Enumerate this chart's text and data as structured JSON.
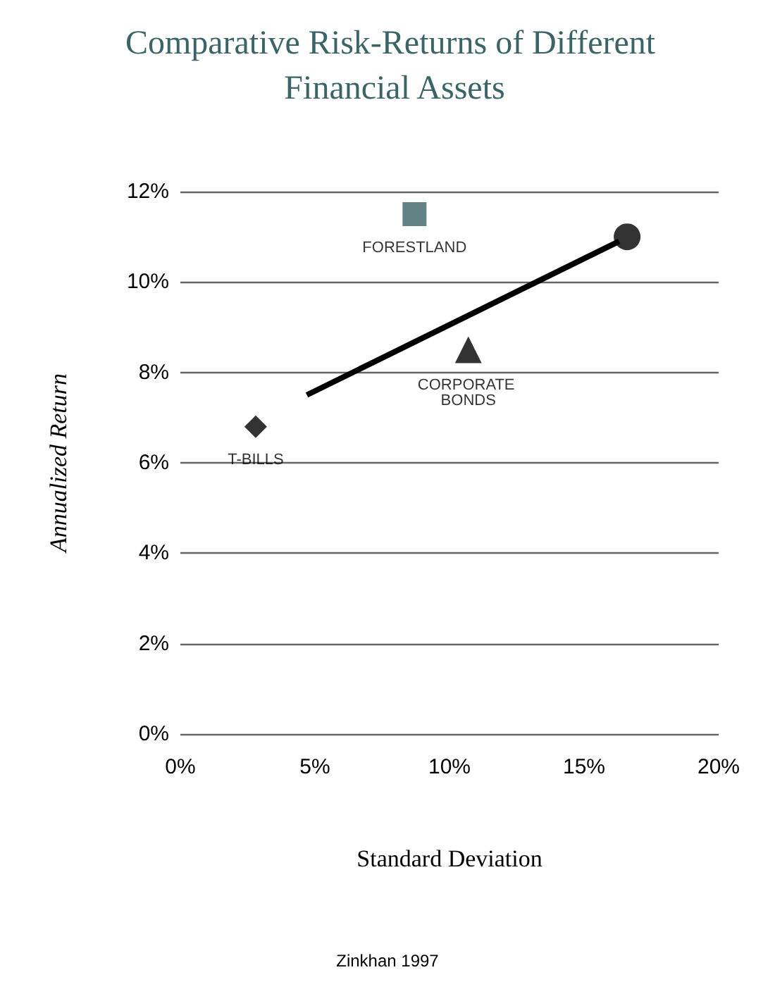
{
  "chart_data": {
    "type": "scatter",
    "title": "Comparative Risk-Returns of Different Financial Assets",
    "xlabel": "Standard Deviation",
    "ylabel": "Annualized Return",
    "annotations": [
      "Zinkhan 1997"
    ],
    "series": [
      {
        "name": "T-BILLS",
        "color": "#000000",
        "marker": "diamond",
        "x": [
          2.8
        ],
        "values": [
          6.8
        ]
      },
      {
        "name": "FORESTLAND",
        "color": "#3b6466",
        "marker": "square",
        "x": [
          8.7
        ],
        "values": [
          11.5
        ]
      },
      {
        "name": "CORPORATE BONDS",
        "color": "#000000",
        "marker": "triangle",
        "x": [
          10.7
        ],
        "values": [
          8.5
        ]
      },
      {
        "color": "#000000",
        "marker": "circle",
        "x": [
          16.6
        ],
        "values": [
          11.0
        ]
      },
      {
        "type": "line",
        "color": "#000000",
        "marker": "none",
        "x": [
          4.7,
          16.3
        ],
        "values": [
          7.5,
          10.9
        ]
      }
    ],
    "xlim": [
      0,
      20
    ],
    "xticks": [
      {
        "value": 0,
        "label": "0%"
      },
      {
        "value": 5,
        "label": "5%"
      },
      {
        "value": 10,
        "label": "10%"
      },
      {
        "value": 15,
        "label": "15%"
      },
      {
        "value": 20,
        "label": "20%"
      }
    ],
    "ylim": [
      0,
      12
    ],
    "yticks": [
      {
        "value": 0,
        "label": "0%"
      },
      {
        "value": 2,
        "label": "2%"
      },
      {
        "value": 4,
        "label": "4%"
      },
      {
        "value": 6,
        "label": "6%"
      },
      {
        "value": 8,
        "label": "8%"
      },
      {
        "value": 10,
        "label": "10%"
      },
      {
        "value": 12,
        "label": "12%"
      }
    ],
    "grid": "y",
    "legend": false
  }
}
